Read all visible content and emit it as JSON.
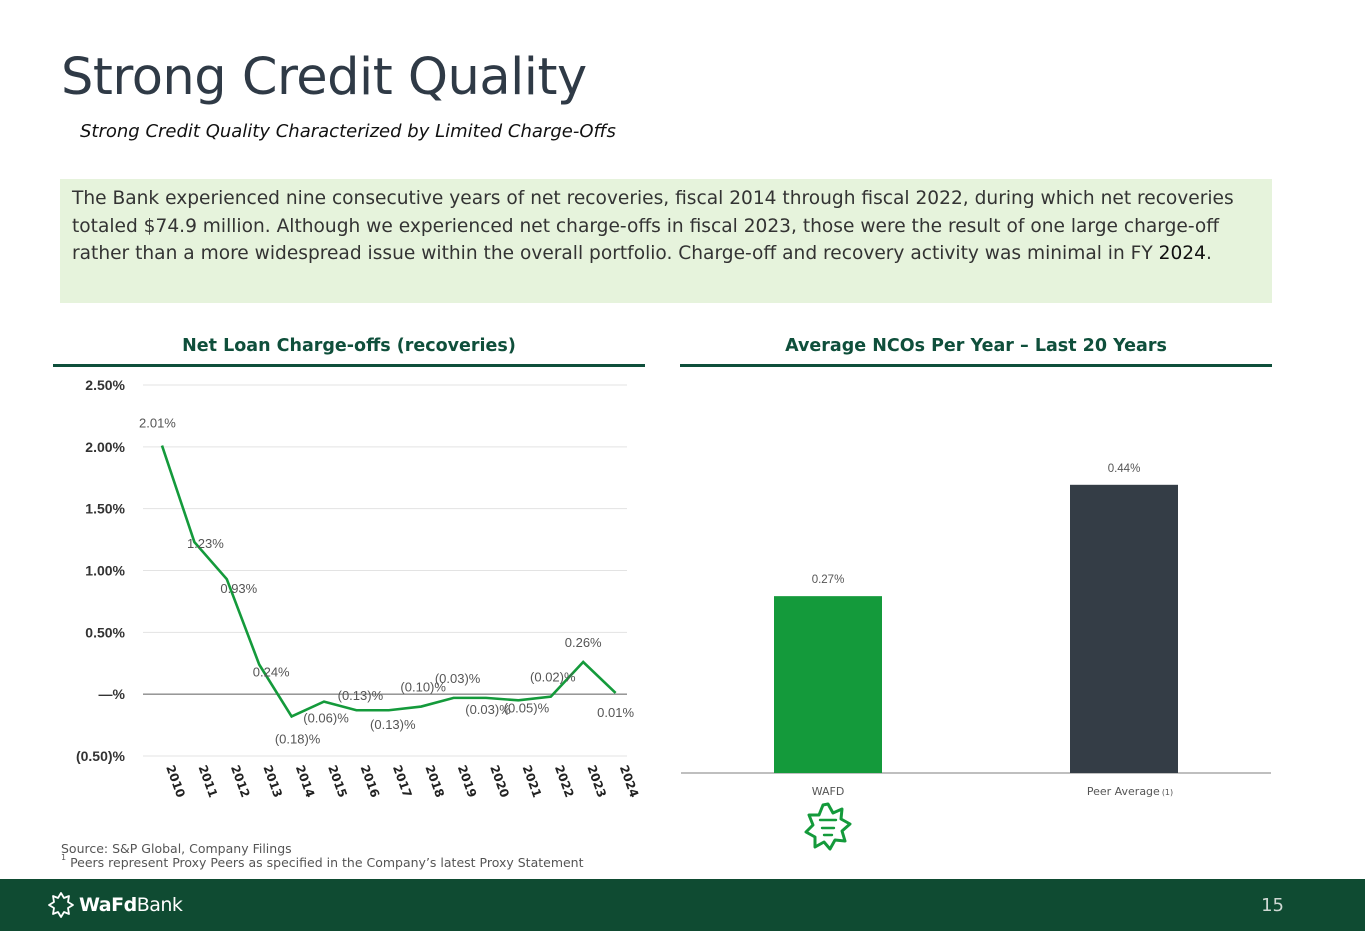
{
  "slide": {
    "title": "Strong Credit Quality",
    "subtitle": "Strong Credit Quality Characterized by Limited Charge-Offs",
    "callout_text": "The Bank experienced nine consecutive years of net recoveries, fiscal 2014 through fiscal 2022, during which net recoveries totaled $74.9 million.  Although we experienced net charge-offs in fiscal 2023, those were the result of one large charge-off rather than a more widespread issue within the overall portfolio.  Charge-off and recovery activity was minimal in FY ",
    "callout_year": "2024",
    "callout_end": ".",
    "source": "Source: S&P Global, Company Filings",
    "footnote_marker": "1",
    "footnote": " Peers represent Proxy Peers as specified in the Company’s latest Proxy Statement",
    "page_number": "15",
    "logo_bold": "WaFd",
    "logo_rest": "Bank",
    "colors": {
      "green": "#149a3b",
      "dark_green": "#0f4f3b",
      "footer": "#0f4b32",
      "peer": "#343d46",
      "callout_bg": "#e6f3dc"
    }
  },
  "chart_data": [
    {
      "type": "line",
      "title": "Net Loan Charge-offs (recoveries)",
      "categories": [
        "2010",
        "2011",
        "2012",
        "2013",
        "2014",
        "2015",
        "2016",
        "2017",
        "2018",
        "2019",
        "2020",
        "2021",
        "2022",
        "2023",
        "2024"
      ],
      "values": [
        2.01,
        1.23,
        0.93,
        0.24,
        -0.18,
        -0.06,
        -0.13,
        -0.13,
        -0.1,
        -0.03,
        -0.03,
        -0.05,
        -0.02,
        0.26,
        0.01
      ],
      "value_labels": [
        "2.01%",
        "1.23%",
        "0.93%",
        "0.24%",
        "(0.18)%",
        "(0.06)%",
        "(0.13)%",
        "(0.13)%",
        "(0.10)%",
        "(0.03)%",
        "(0.03)%",
        "(0.05)%",
        "(0.02)%",
        "0.26%",
        "0.01%"
      ],
      "yticks": [
        2.5,
        2.0,
        1.5,
        1.0,
        0.5,
        0.0,
        -0.5
      ],
      "ytick_labels": [
        "2.50%",
        "2.00%",
        "1.50%",
        "1.00%",
        "0.50%",
        "—%",
        "(0.50)%"
      ],
      "ylim": [
        -0.5,
        2.5
      ],
      "grid": true,
      "color": "#149a3b"
    },
    {
      "type": "bar",
      "title": "Average NCOs Per Year – Last 20 Years",
      "categories": [
        "WAFD",
        "Peer Average"
      ],
      "category_note": "(1)",
      "values": [
        0.27,
        0.44
      ],
      "value_labels": [
        "0.27%",
        "0.44%"
      ],
      "colors": [
        "#149a3b",
        "#343d46"
      ]
    }
  ]
}
